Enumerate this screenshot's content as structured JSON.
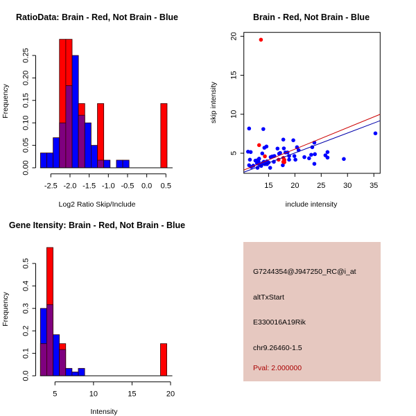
{
  "colors": {
    "red": "#ff0000",
    "blue": "#0000ff",
    "overlap": "#7f007f",
    "info_bg": "#e6c8c0",
    "pval": "#aa0000"
  },
  "chart_data": [
    {
      "type": "bar",
      "title": "RatioData: Brain - Red, Not Brain - Blue",
      "xlabel": "Log2 Ratio Skip/Include",
      "ylabel": "Frequency",
      "xlim": [
        -2.9,
        0.65
      ],
      "ylim": [
        0,
        0.286
      ],
      "xticks": [
        -2.5,
        -2.0,
        -1.5,
        -1.0,
        -0.5,
        0.0,
        0.5
      ],
      "xtick_labels": [
        "-2.5",
        "-2.0",
        "-1.5",
        "-1.0",
        "-0.5",
        "0.0",
        "0.5"
      ],
      "yticks": [
        0,
        0.05,
        0.1,
        0.15,
        0.2,
        0.25
      ],
      "ytick_labels": [
        "0.00",
        "0.05",
        "0.10",
        "0.15",
        "0.20",
        "0.25"
      ],
      "bin_start": -2.77,
      "bin_width": 0.165,
      "series": [
        {
          "name": "Not Brain",
          "color": "blue",
          "values": [
            0.033,
            0.033,
            0.067,
            0.1,
            0.183,
            0.25,
            0.117,
            0.1,
            0.05,
            0.017,
            0.017,
            0,
            0.017,
            0.017,
            0,
            0,
            0,
            0,
            0,
            0
          ]
        },
        {
          "name": "Brain",
          "color": "red",
          "values": [
            0,
            0,
            0,
            0.286,
            0.286,
            0,
            0.143,
            0,
            0,
            0.143,
            0,
            0,
            0,
            0,
            0,
            0,
            0,
            0,
            0,
            0.143
          ]
        }
      ]
    },
    {
      "type": "scatter",
      "title": "Brain - Red, Not Brain - Blue",
      "xlabel": "include intensity",
      "ylabel": "skip intensity",
      "xlim": [
        10.3,
        36.2
      ],
      "ylim": [
        2.42,
        20.5
      ],
      "xticks": [
        15,
        20,
        25,
        30,
        35
      ],
      "xtick_labels": [
        "15",
        "20",
        "25",
        "30",
        "35"
      ],
      "yticks": [
        5,
        10,
        15,
        20
      ],
      "ytick_labels": [
        "5",
        "10",
        "15",
        "20"
      ],
      "series": [
        {
          "name": "Not Brain",
          "color": "blue",
          "points": [
            [
              11.3,
              8.17
            ],
            [
              14.0,
              8.1
            ],
            [
              11.1,
              5.2
            ],
            [
              11.6,
              5.15
            ],
            [
              11.45,
              4.17
            ],
            [
              11.3,
              3.46
            ],
            [
              11.7,
              3.25
            ],
            [
              12.1,
              3.4
            ],
            [
              12.5,
              4.05
            ],
            [
              12.9,
              4.1
            ],
            [
              13.2,
              3.6
            ],
            [
              13.2,
              4.3
            ],
            [
              12.9,
              3.13
            ],
            [
              13.6,
              3.37
            ],
            [
              13.8,
              4.97
            ],
            [
              14.2,
              5.7
            ],
            [
              14.6,
              5.86
            ],
            [
              14.3,
              3.6
            ],
            [
              14.7,
              3.6
            ],
            [
              14.7,
              3.96
            ],
            [
              15.3,
              3.13
            ],
            [
              15.4,
              4.5
            ],
            [
              15.7,
              4.58
            ],
            [
              16.1,
              4.64
            ],
            [
              16.0,
              3.9
            ],
            [
              16.7,
              5.6
            ],
            [
              17.0,
              4.94
            ],
            [
              17.2,
              5.03
            ],
            [
              17.8,
              6.75
            ],
            [
              17.9,
              5.62
            ],
            [
              17.7,
              3.46
            ],
            [
              18.2,
              5.1
            ],
            [
              18.6,
              5.1
            ],
            [
              18.9,
              4.64
            ],
            [
              18.9,
              4.17
            ],
            [
              19.7,
              6.66
            ],
            [
              19.9,
              4.64
            ],
            [
              20.1,
              4.17
            ],
            [
              20.4,
              5.77
            ],
            [
              20.7,
              5.4
            ],
            [
              21.8,
              4.5
            ],
            [
              22.7,
              4.35
            ],
            [
              23.1,
              4.8
            ],
            [
              23.3,
              5.77
            ],
            [
              23.7,
              6.36
            ],
            [
              23.7,
              3.64
            ],
            [
              23.8,
              4.88
            ],
            [
              25.8,
              4.73
            ],
            [
              26.2,
              5.15
            ],
            [
              26.2,
              4.44
            ],
            [
              29.3,
              4.26
            ],
            [
              35.3,
              7.55
            ],
            [
              12.8,
              3.7
            ],
            [
              13.8,
              3.7
            ],
            [
              14.1,
              3.9
            ],
            [
              15.0,
              3.8
            ],
            [
              13.1,
              3.9
            ]
          ]
        },
        {
          "name": "Brain",
          "color": "red",
          "points": [
            [
              13.55,
              19.56
            ],
            [
              13.2,
              6.04
            ],
            [
              14.3,
              4.6
            ],
            [
              16.9,
              4.17
            ],
            [
              17.8,
              4.4
            ],
            [
              18.0,
              4.14
            ],
            [
              18.0,
              3.84
            ],
            [
              17.8,
              3.9
            ]
          ]
        }
      ],
      "fit_lines": [
        {
          "name": "Brain fit",
          "color": "red",
          "slope": 0.276,
          "intercept": 0.0
        },
        {
          "name": "Not Brain fit",
          "color": "blue",
          "slope": 0.255,
          "intercept": -0.06
        }
      ]
    },
    {
      "type": "bar",
      "title": "Gene Itensity: Brain - Red, Not Brain - Blue",
      "xlabel": "Intensity",
      "ylabel": "Frequency",
      "xlim": [
        2.4,
        20.4
      ],
      "ylim": [
        0,
        0.571
      ],
      "xticks": [
        5,
        10,
        15,
        20
      ],
      "xtick_labels": [
        "5",
        "10",
        "15",
        "20"
      ],
      "yticks": [
        0,
        0.1,
        0.2,
        0.3,
        0.4,
        0.5
      ],
      "ytick_labels": [
        "0.0",
        "0.1",
        "0.2",
        "0.3",
        "0.4",
        "0.5"
      ],
      "bin_start": 3.11,
      "bin_width": 0.82,
      "series": [
        {
          "name": "Not Brain",
          "color": "blue",
          "values": [
            0.3,
            0.317,
            0.183,
            0.117,
            0.033,
            0.017,
            0.033,
            0,
            0,
            0,
            0,
            0,
            0,
            0,
            0,
            0,
            0,
            0,
            0,
            0
          ]
        },
        {
          "name": "Brain",
          "color": "red",
          "values": [
            0.143,
            0.571,
            0,
            0.143,
            0,
            0,
            0,
            0,
            0,
            0,
            0,
            0,
            0,
            0,
            0,
            0,
            0,
            0,
            0,
            0.143
          ]
        }
      ]
    }
  ],
  "info": {
    "probe": "G7244354@J947250_RC@i_at",
    "event_type": "altTxStart",
    "gene": "E330016A19Rik",
    "location": "chr9.26460-1.5",
    "pval": "Pval: 2.000000"
  }
}
